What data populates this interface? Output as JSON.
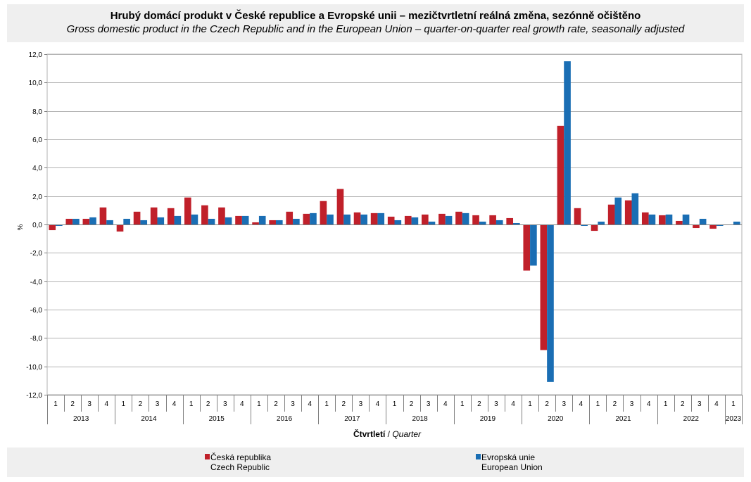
{
  "title": {
    "cz": "Hrubý domácí produkt v České republice a Evropské unii – mezičtvrtletní reálná změna, sezónně očištěno",
    "en": "Gross domestic product in the Czech Republic and in the European Union – quarter-on-quarter real growth rate, seasonally adjusted"
  },
  "legend": [
    {
      "line1": "Česká republika",
      "line2": "Czech Republic",
      "color": "#c0202a"
    },
    {
      "line1": "Evropská unie",
      "line2": "European Union",
      "color": "#1a6eb4"
    }
  ],
  "chart_data": {
    "type": "bar",
    "title": "Hrubý domácí produkt v České republice a Evropské unii – mezičtvrtletní reálná změna, sezónně očištěno",
    "ylabel": "%",
    "xlabel_cz": "Čtvrtletí",
    "xlabel_sep": "/",
    "xlabel_en": "Quarter",
    "ylim": [
      -12,
      12
    ],
    "yticks": [
      "12,0",
      "10,0",
      "8,0",
      "6,0",
      "4,0",
      "2,0",
      "0,0",
      "-2,0",
      "-4,0",
      "-6,0",
      "-8,0",
      "-10,0",
      "-12,0"
    ],
    "grid": true,
    "legend_position": "bottom",
    "categories": [
      "1",
      "2",
      "3",
      "4",
      "1",
      "2",
      "3",
      "4",
      "1",
      "2",
      "3",
      "4",
      "1",
      "2",
      "3",
      "4",
      "1",
      "2",
      "3",
      "4",
      "1",
      "2",
      "3",
      "4",
      "1",
      "2",
      "3",
      "4",
      "1",
      "2",
      "3",
      "4",
      "1",
      "2",
      "3",
      "4",
      "1",
      "2",
      "3",
      "4",
      "1"
    ],
    "year_groups": [
      {
        "year": "2013",
        "count": 4
      },
      {
        "year": "2014",
        "count": 4
      },
      {
        "year": "2015",
        "count": 4
      },
      {
        "year": "2016",
        "count": 4
      },
      {
        "year": "2017",
        "count": 4
      },
      {
        "year": "2018",
        "count": 4
      },
      {
        "year": "2019",
        "count": 4
      },
      {
        "year": "2020",
        "count": 4
      },
      {
        "year": "2021",
        "count": 4
      },
      {
        "year": "2022",
        "count": 4
      },
      {
        "year": "2023",
        "count": 1
      }
    ],
    "series": [
      {
        "name": "Česká republika",
        "color": "#c0202a",
        "values": [
          -0.4,
          0.4,
          0.4,
          1.2,
          -0.5,
          0.9,
          1.2,
          1.15,
          1.9,
          1.35,
          1.2,
          0.6,
          0.15,
          0.3,
          0.9,
          0.75,
          1.65,
          2.5,
          0.85,
          0.8,
          0.55,
          0.6,
          0.7,
          0.75,
          0.9,
          0.65,
          0.65,
          0.45,
          -3.25,
          -8.85,
          6.95,
          1.15,
          -0.45,
          1.4,
          1.7,
          0.85,
          0.65,
          0.25,
          -0.25,
          -0.3,
          0.0
        ]
      },
      {
        "name": "Evropská unie",
        "color": "#1a6eb4",
        "values": [
          -0.1,
          0.4,
          0.5,
          0.3,
          0.4,
          0.3,
          0.5,
          0.6,
          0.7,
          0.4,
          0.5,
          0.6,
          0.6,
          0.3,
          0.4,
          0.8,
          0.7,
          0.7,
          0.7,
          0.8,
          0.3,
          0.5,
          0.2,
          0.6,
          0.8,
          0.2,
          0.3,
          0.1,
          -2.9,
          -11.1,
          11.5,
          -0.1,
          0.2,
          1.9,
          2.2,
          0.7,
          0.7,
          0.7,
          0.4,
          -0.1,
          0.2
        ]
      }
    ]
  }
}
